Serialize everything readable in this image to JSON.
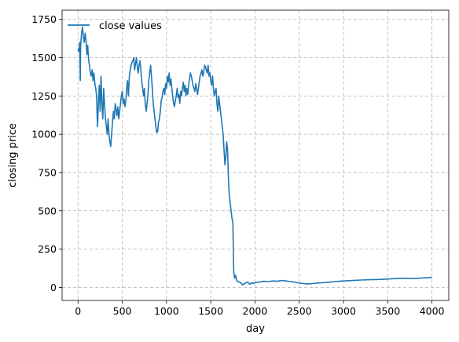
{
  "chart_data": {
    "type": "line",
    "title": "",
    "xlabel": "day",
    "ylabel": "closing price",
    "xlim": [
      -180,
      4190
    ],
    "ylim": [
      -85,
      1810
    ],
    "x_ticks": [
      0,
      500,
      1000,
      1500,
      2000,
      2500,
      3000,
      3500,
      4000
    ],
    "y_ticks": [
      0,
      250,
      500,
      750,
      1000,
      1250,
      1500,
      1750
    ],
    "grid": true,
    "legend_position": "top-left",
    "series": [
      {
        "name": "close values",
        "color": "#1f77b4",
        "x": [
          0,
          10,
          20,
          25,
          30,
          40,
          50,
          60,
          70,
          80,
          90,
          100,
          110,
          120,
          130,
          140,
          150,
          160,
          170,
          180,
          190,
          200,
          210,
          220,
          230,
          240,
          250,
          260,
          270,
          280,
          290,
          300,
          310,
          320,
          330,
          340,
          350,
          360,
          370,
          380,
          390,
          400,
          410,
          420,
          430,
          440,
          450,
          460,
          470,
          480,
          490,
          500,
          510,
          520,
          530,
          540,
          550,
          560,
          570,
          580,
          590,
          600,
          610,
          620,
          630,
          640,
          650,
          660,
          670,
          680,
          690,
          700,
          710,
          720,
          730,
          740,
          750,
          760,
          770,
          780,
          790,
          800,
          810,
          820,
          830,
          840,
          850,
          860,
          870,
          880,
          890,
          900,
          910,
          920,
          930,
          940,
          950,
          960,
          970,
          980,
          990,
          1000,
          1010,
          1020,
          1030,
          1040,
          1050,
          1060,
          1070,
          1080,
          1090,
          1100,
          1110,
          1120,
          1130,
          1140,
          1150,
          1160,
          1170,
          1180,
          1190,
          1200,
          1210,
          1220,
          1230,
          1240,
          1250,
          1260,
          1270,
          1280,
          1290,
          1300,
          1310,
          1320,
          1330,
          1340,
          1350,
          1360,
          1370,
          1380,
          1390,
          1400,
          1410,
          1420,
          1430,
          1440,
          1450,
          1460,
          1470,
          1480,
          1490,
          1500,
          1510,
          1520,
          1530,
          1540,
          1550,
          1560,
          1570,
          1580,
          1590,
          1600,
          1610,
          1620,
          1630,
          1640,
          1650,
          1660,
          1670,
          1680,
          1690,
          1700,
          1710,
          1720,
          1730,
          1740,
          1750,
          1760,
          1770,
          1780,
          1790,
          1800,
          1820,
          1840,
          1860,
          1880,
          1900,
          1920,
          1940,
          1960,
          1980,
          2000,
          2050,
          2100,
          2150,
          2200,
          2250,
          2300,
          2350,
          2400,
          2450,
          2500,
          2550,
          2600,
          2650,
          2700,
          2750,
          2800,
          2850,
          2900,
          2950,
          3000,
          3100,
          3200,
          3300,
          3400,
          3500,
          3600,
          3700,
          3800,
          3900,
          4000
        ],
        "y": [
          1560,
          1540,
          1600,
          1350,
          1580,
          1660,
          1700,
          1640,
          1600,
          1660,
          1620,
          1520,
          1580,
          1480,
          1450,
          1400,
          1380,
          1420,
          1350,
          1400,
          1330,
          1300,
          1250,
          1050,
          1200,
          1320,
          1150,
          1380,
          1200,
          1100,
          1300,
          1200,
          1100,
          1050,
          1000,
          1100,
          1000,
          950,
          920,
          1000,
          1080,
          1150,
          1100,
          1200,
          1160,
          1120,
          1180,
          1100,
          1150,
          1200,
          1250,
          1280,
          1200,
          1230,
          1180,
          1220,
          1300,
          1350,
          1250,
          1380,
          1420,
          1450,
          1470,
          1480,
          1500,
          1420,
          1460,
          1500,
          1440,
          1400,
          1450,
          1480,
          1420,
          1350,
          1300,
          1250,
          1300,
          1200,
          1150,
          1200,
          1250,
          1350,
          1400,
          1450,
          1380,
          1300,
          1200,
          1150,
          1100,
          1050,
          1010,
          1020,
          1080,
          1100,
          1150,
          1220,
          1240,
          1280,
          1300,
          1260,
          1330,
          1300,
          1380,
          1340,
          1400,
          1320,
          1360,
          1300,
          1250,
          1200,
          1180,
          1220,
          1250,
          1300,
          1240,
          1260,
          1200,
          1280,
          1250,
          1300,
          1340,
          1280,
          1320,
          1250,
          1300,
          1260,
          1320,
          1360,
          1400,
          1380,
          1350,
          1320,
          1300,
          1280,
          1330,
          1300,
          1260,
          1300,
          1340,
          1380,
          1400,
          1420,
          1380,
          1400,
          1450,
          1440,
          1420,
          1400,
          1450,
          1380,
          1400,
          1350,
          1320,
          1380,
          1300,
          1250,
          1280,
          1300,
          1200,
          1150,
          1250,
          1200,
          1150,
          1100,
          1050,
          1000,
          900,
          800,
          850,
          950,
          900,
          700,
          600,
          550,
          500,
          450,
          420,
          100,
          60,
          80,
          50,
          40,
          35,
          30,
          15,
          25,
          30,
          35,
          20,
          30,
          25,
          30,
          35,
          40,
          38,
          42,
          40,
          45,
          42,
          38,
          35,
          28,
          25,
          22,
          25,
          28,
          30,
          32,
          35,
          38,
          40,
          42,
          45,
          48,
          50,
          52,
          55,
          58,
          60,
          58,
          62,
          65
        ]
      }
    ]
  }
}
